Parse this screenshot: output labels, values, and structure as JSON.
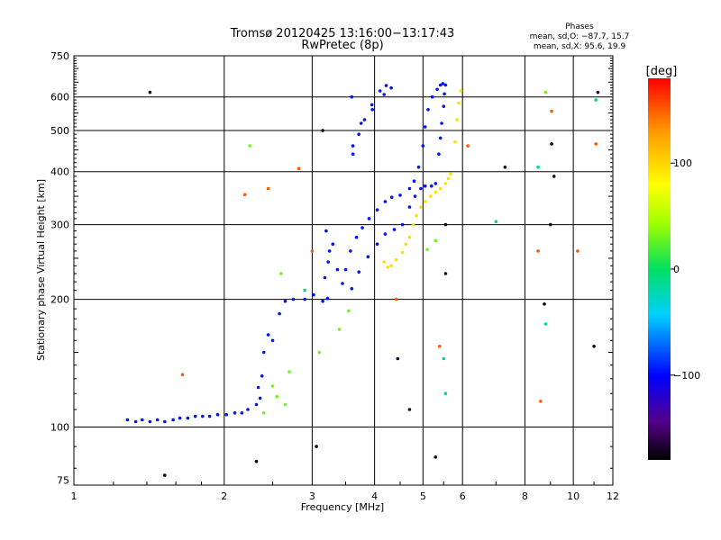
{
  "header": {
    "title_line1": "Tromsø 20120425 13:16:00−13:17:43",
    "title_line2": "RwPretec (8p)",
    "phases_title": "Phases",
    "phases_line1": "mean, sd,O: −87.7, 15.7",
    "phases_line2": "mean, sd,X:  95.6, 19.9"
  },
  "chart_data": {
    "type": "scatter",
    "title": "Tromsø 20120425 13:16:00−13:17:43",
    "subtitle": "RwPretec (8p)",
    "xlabel": "Frequency [MHz]",
    "ylabel": "Stationary phase Virtual Height [km]",
    "xscale": "log",
    "yscale": "log",
    "xlim": [
      1,
      12
    ],
    "ylim": [
      73,
      750
    ],
    "xticks": [
      1,
      2,
      3,
      4,
      5,
      6,
      8,
      10,
      12
    ],
    "xtick_labels": [
      "1",
      "2",
      "3",
      "4",
      "5",
      "6",
      "8",
      "10",
      "12"
    ],
    "yticks": [
      75,
      100,
      200,
      300,
      400,
      500,
      600,
      750
    ],
    "ytick_labels": [
      "75",
      "100",
      "200",
      "300",
      "400",
      "500",
      "600",
      "750"
    ],
    "grid": true,
    "colorbar": {
      "label": "[deg]",
      "range": [
        -180,
        180
      ],
      "ticks": [
        100,
        0,
        -100
      ],
      "tick_labels": [
        "100",
        "0",
        "−100"
      ]
    },
    "series": [
      {
        "phase": -95,
        "points": [
          [
            1.28,
            104
          ],
          [
            1.33,
            103
          ],
          [
            1.37,
            104
          ],
          [
            1.42,
            103
          ],
          [
            1.47,
            104
          ],
          [
            1.52,
            103
          ],
          [
            1.58,
            104
          ],
          [
            1.63,
            105
          ],
          [
            1.69,
            105
          ],
          [
            1.75,
            106
          ],
          [
            1.81,
            106
          ],
          [
            1.87,
            106
          ],
          [
            1.94,
            107
          ],
          [
            2.02,
            107
          ],
          [
            2.1,
            108
          ],
          [
            2.17,
            108
          ],
          [
            2.23,
            110
          ],
          [
            2.32,
            113
          ],
          [
            2.36,
            117
          ],
          [
            2.34,
            124
          ],
          [
            2.38,
            132
          ],
          [
            2.4,
            150
          ],
          [
            2.45,
            165
          ],
          [
            2.5,
            160
          ],
          [
            2.58,
            185
          ],
          [
            2.65,
            198
          ],
          [
            2.75,
            200
          ],
          [
            2.9,
            200
          ],
          [
            3.02,
            205
          ],
          [
            3.15,
            198
          ],
          [
            3.22,
            201
          ],
          [
            3.18,
            225
          ],
          [
            3.23,
            245
          ],
          [
            3.25,
            260
          ],
          [
            3.2,
            290
          ],
          [
            3.3,
            270
          ],
          [
            3.37,
            235
          ],
          [
            3.45,
            218
          ],
          [
            3.5,
            235
          ],
          [
            3.58,
            260
          ],
          [
            3.68,
            280
          ],
          [
            3.78,
            295
          ],
          [
            3.9,
            310
          ],
          [
            4.05,
            325
          ],
          [
            4.2,
            340
          ],
          [
            4.33,
            348
          ],
          [
            4.5,
            352
          ],
          [
            4.7,
            365
          ],
          [
            4.8,
            380
          ],
          [
            4.9,
            410
          ],
          [
            5.0,
            460
          ],
          [
            5.05,
            510
          ],
          [
            5.12,
            560
          ],
          [
            5.22,
            600
          ],
          [
            5.34,
            625
          ],
          [
            5.42,
            640
          ],
          [
            5.48,
            645
          ],
          [
            5.55,
            640
          ],
          [
            5.52,
            610
          ],
          [
            5.5,
            570
          ],
          [
            5.45,
            520
          ],
          [
            5.42,
            480
          ],
          [
            5.38,
            440
          ],
          [
            3.6,
            600
          ],
          [
            3.62,
            440
          ],
          [
            3.72,
            490
          ],
          [
            3.82,
            530
          ],
          [
            3.95,
            575
          ],
          [
            4.1,
            620
          ],
          [
            4.22,
            638
          ],
          [
            4.32,
            630
          ],
          [
            4.18,
            608
          ],
          [
            3.96,
            560
          ],
          [
            3.76,
            520
          ],
          [
            3.62,
            460
          ],
          [
            3.6,
            212
          ],
          [
            3.72,
            232
          ],
          [
            3.88,
            252
          ],
          [
            4.05,
            270
          ],
          [
            4.2,
            285
          ],
          [
            4.38,
            292
          ],
          [
            4.55,
            300
          ],
          [
            4.7,
            330
          ],
          [
            4.82,
            350
          ],
          [
            4.95,
            365
          ],
          [
            5.05,
            370
          ],
          [
            5.2,
            370
          ],
          [
            5.3,
            375
          ]
        ]
      },
      {
        "phase": 95,
        "points": [
          [
            4.18,
            245
          ],
          [
            4.25,
            238
          ],
          [
            4.32,
            240
          ],
          [
            4.42,
            248
          ],
          [
            4.55,
            258
          ],
          [
            4.62,
            270
          ],
          [
            4.7,
            280
          ],
          [
            4.78,
            300
          ],
          [
            4.85,
            315
          ],
          [
            4.95,
            330
          ],
          [
            5.05,
            340
          ],
          [
            5.18,
            350
          ],
          [
            5.3,
            358
          ],
          [
            5.42,
            365
          ],
          [
            5.55,
            375
          ],
          [
            5.62,
            385
          ],
          [
            5.68,
            395
          ],
          [
            5.8,
            470
          ],
          [
            5.85,
            530
          ],
          [
            5.9,
            580
          ],
          [
            5.95,
            620
          ]
        ]
      },
      {
        "phase": 30,
        "points": [
          [
            2.25,
            460
          ],
          [
            2.6,
            230
          ],
          [
            2.5,
            125
          ],
          [
            2.55,
            118
          ],
          [
            2.7,
            135
          ],
          [
            3.55,
            188
          ],
          [
            5.3,
            275
          ],
          [
            8.8,
            615
          ],
          [
            2.4,
            108
          ],
          [
            2.65,
            113
          ],
          [
            3.1,
            150
          ],
          [
            5.1,
            262
          ],
          [
            3.4,
            170
          ]
        ]
      },
      {
        "phase": 150,
        "points": [
          [
            1.65,
            133
          ],
          [
            2.2,
            353
          ],
          [
            2.45,
            365
          ],
          [
            2.82,
            407
          ],
          [
            5.4,
            155
          ],
          [
            6.15,
            460
          ],
          [
            8.5,
            260
          ],
          [
            8.6,
            115
          ],
          [
            9.05,
            555
          ],
          [
            10.2,
            260
          ],
          [
            11.1,
            465
          ],
          [
            4.42,
            200
          ],
          [
            3.0,
            260
          ]
        ]
      },
      {
        "phase": -170,
        "points": [
          [
            1.42,
            615
          ],
          [
            1.52,
            77
          ],
          [
            2.32,
            83
          ],
          [
            3.06,
            90
          ],
          [
            3.15,
            500
          ],
          [
            4.45,
            145
          ],
          [
            4.7,
            110
          ],
          [
            5.3,
            85
          ],
          [
            5.55,
            230
          ],
          [
            5.55,
            300
          ],
          [
            7.3,
            410
          ],
          [
            8.75,
            195
          ],
          [
            9.05,
            465
          ],
          [
            9.0,
            300
          ],
          [
            11.0,
            155
          ],
          [
            11.2,
            615
          ],
          [
            9.15,
            390
          ]
        ]
      },
      {
        "phase": -10,
        "points": [
          [
            5.5,
            145
          ],
          [
            5.55,
            120
          ],
          [
            7.0,
            305
          ],
          [
            8.5,
            410
          ],
          [
            8.8,
            175
          ],
          [
            11.1,
            590
          ],
          [
            2.9,
            210
          ]
        ]
      }
    ]
  }
}
